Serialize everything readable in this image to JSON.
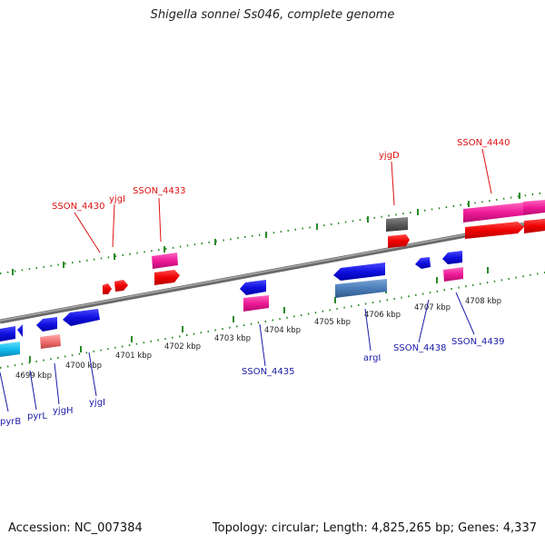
{
  "title": "Shigella sonnei Ss046, complete genome",
  "footer": {
    "accession": "Accession: NC_007384",
    "summary": "Topology: circular; Length: 4,825,265 bp; Genes: 4,337"
  },
  "colors": {
    "forward_label": "#dd1111",
    "reverse_label": "#1a1aa8",
    "tick": "#2a8a2a",
    "backbone": "#8a8a8a"
  },
  "kbp_ticks": [
    "4699 kbp",
    "4700 kbp",
    "4701 kbp",
    "4702 kbp",
    "4703 kbp",
    "4704 kbp",
    "4705 kbp",
    "4706 kbp",
    "4707 kbp",
    "4708 kbp"
  ],
  "forward_labels": [
    "SSON_4430",
    "yjgI",
    "SSON_4433",
    "yjgD",
    "SSON_4440"
  ],
  "reverse_labels": [
    "pyrB",
    "pyrL",
    "yjgH",
    "yjgI",
    "SSON_4435",
    "argI",
    "SSON_4438",
    "SSON_4439"
  ]
}
